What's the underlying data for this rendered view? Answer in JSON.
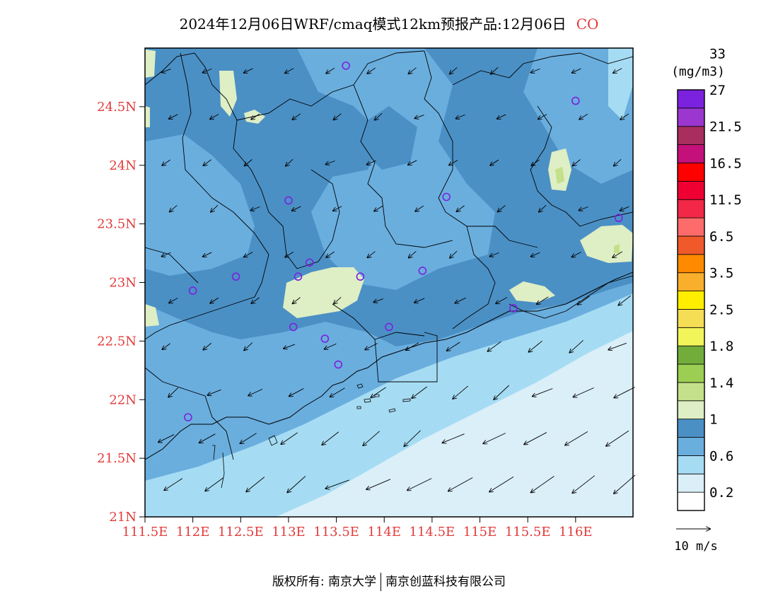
{
  "header": {
    "title": "2024年12月06日WRF/cmaq模式12km预报产品:12月06日",
    "pollutant": "CO"
  },
  "map": {
    "lon_range": [
      111.5,
      116.6
    ],
    "lat_range": [
      21.0,
      25.0
    ],
    "lat_ticks": [
      {
        "value": 24.5,
        "label": "24.5N"
      },
      {
        "value": 24.0,
        "label": "24N"
      },
      {
        "value": 23.5,
        "label": "23.5N"
      },
      {
        "value": 23.0,
        "label": "23N"
      },
      {
        "value": 22.5,
        "label": "22.5N"
      },
      {
        "value": 22.0,
        "label": "22N"
      },
      {
        "value": 21.5,
        "label": "21.5N"
      },
      {
        "value": 21.0,
        "label": "21N"
      }
    ],
    "lon_ticks": [
      {
        "value": 111.5,
        "label": "111.5E"
      },
      {
        "value": 112.0,
        "label": "112E"
      },
      {
        "value": 112.5,
        "label": "112.5E"
      },
      {
        "value": 113.0,
        "label": "113E"
      },
      {
        "value": 113.5,
        "label": "113.5E"
      },
      {
        "value": 114.0,
        "label": "114E"
      },
      {
        "value": 114.5,
        "label": "114.5E"
      },
      {
        "value": 115.0,
        "label": "115E"
      },
      {
        "value": 115.5,
        "label": "115.5E"
      },
      {
        "value": 116.0,
        "label": "116E"
      }
    ],
    "stations": [
      {
        "lon": 113.6,
        "lat": 24.85
      },
      {
        "lon": 116.0,
        "lat": 24.55
      },
      {
        "lon": 113.0,
        "lat": 23.7
      },
      {
        "lon": 114.65,
        "lat": 23.73
      },
      {
        "lon": 116.45,
        "lat": 23.55
      },
      {
        "lon": 113.22,
        "lat": 23.17
      },
      {
        "lon": 113.1,
        "lat": 23.05
      },
      {
        "lon": 113.75,
        "lat": 23.05
      },
      {
        "lon": 114.4,
        "lat": 23.1
      },
      {
        "lon": 112.45,
        "lat": 23.05
      },
      {
        "lon": 112.0,
        "lat": 22.93
      },
      {
        "lon": 113.05,
        "lat": 22.62
      },
      {
        "lon": 113.38,
        "lat": 22.52
      },
      {
        "lon": 114.05,
        "lat": 22.62
      },
      {
        "lon": 115.35,
        "lat": 22.78
      },
      {
        "lon": 113.52,
        "lat": 22.3
      },
      {
        "lon": 111.95,
        "lat": 21.85
      }
    ]
  },
  "legend": {
    "unit": "(mg/m3)",
    "colors": [
      "#ffffff",
      "#dbeff9",
      "#a6dcf3",
      "#6aaede",
      "#4b90c5",
      "#deeec5",
      "#c4e08a",
      "#9bce52",
      "#72ad3c",
      "#f2f55a",
      "#f5dd55",
      "#ffee00",
      "#f9ae2c",
      "#ff8a00",
      "#f05a2a",
      "#fe6b6b",
      "#f22846",
      "#f00032",
      "#ff0000",
      "#c4107a",
      "#a82e5e",
      "#9b37cf",
      "#7a22de"
    ],
    "labels": [
      "0.2",
      "0.6",
      "1",
      "1.4",
      "1.8",
      "2.5",
      "3.5",
      "6.5",
      "11.5",
      "16.5",
      "21.5",
      "27",
      "33"
    ]
  },
  "wind_scale": {
    "label": "10 m/s"
  },
  "footer": {
    "left": "版权所有: 南京大学",
    "right": "南京创蓝科技有限公司"
  }
}
